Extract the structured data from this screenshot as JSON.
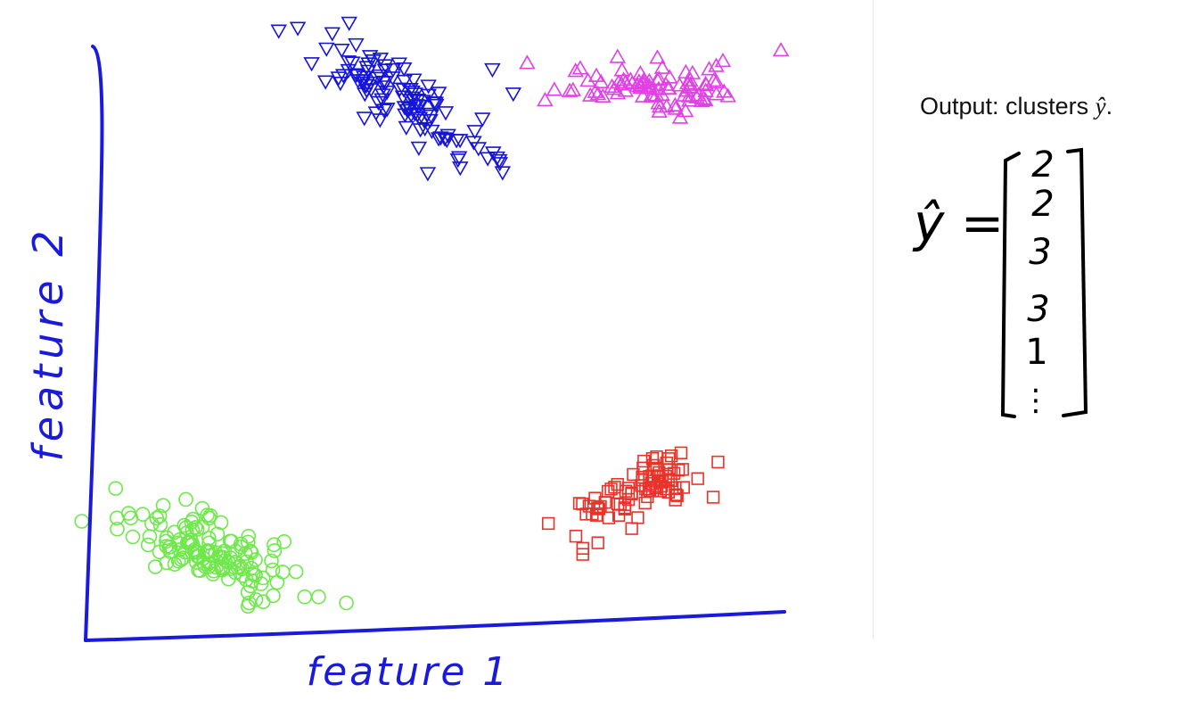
{
  "output_panel": {
    "label_prefix": "Output: clusters ",
    "label_symbol": "ŷ",
    "label_suffix": ".",
    "vector_lhs": "ŷ =",
    "vector_entries": [
      "2",
      "2",
      "3",
      "3",
      "1",
      "⋮"
    ]
  },
  "chart_data": {
    "type": "scatter",
    "title": "",
    "xlabel": "feature 1",
    "ylabel": "feature 2",
    "xlim": [
      0,
      10
    ],
    "ylim": [
      0,
      10
    ],
    "grid": false,
    "legend": "none",
    "axis_color": "#1a1adc",
    "series": [
      {
        "marker": "circle",
        "color": "#6ee84a",
        "center": [
          1.8,
          1.3
        ],
        "spread": [
          0.55,
          0.33
        ],
        "corr": -0.5,
        "count": 130,
        "extra": [
          [
            0.4,
            1.9
          ],
          [
            0.6,
            1.9
          ],
          [
            3.7,
            0.5
          ],
          [
            3.3,
            0.6
          ],
          [
            3.1,
            0.6
          ],
          [
            2.3,
            0.5
          ]
        ]
      },
      {
        "marker": "triangle-down",
        "color": "#1515d8",
        "center": [
          4.5,
          8.8
        ],
        "spread": [
          0.6,
          0.5
        ],
        "corr": -0.85,
        "count": 110,
        "extra": [
          [
            3.2,
            9.4
          ],
          [
            3.4,
            9.1
          ],
          [
            5.9,
            7.8
          ],
          [
            5.6,
            8.0
          ],
          [
            5.8,
            9.3
          ],
          [
            6.1,
            8.9
          ]
        ]
      },
      {
        "marker": "triangle-up",
        "color": "#e040e6",
        "center": [
          8.3,
          9.0
        ],
        "spread": [
          0.7,
          0.18
        ],
        "corr": 0.0,
        "count": 85,
        "extra": [
          [
            6.3,
            9.4
          ],
          [
            7.6,
            9.5
          ],
          [
            8.5,
            8.5
          ],
          [
            8.2,
            8.6
          ]
        ]
      },
      {
        "marker": "square",
        "color": "#e8332a",
        "center": [
          8.0,
          2.4
        ],
        "spread": [
          0.5,
          0.33
        ],
        "corr": 0.65,
        "count": 80,
        "extra": [
          [
            7.0,
            1.6
          ],
          [
            7.1,
            1.3
          ],
          [
            7.1,
            1.4
          ]
        ]
      }
    ]
  }
}
